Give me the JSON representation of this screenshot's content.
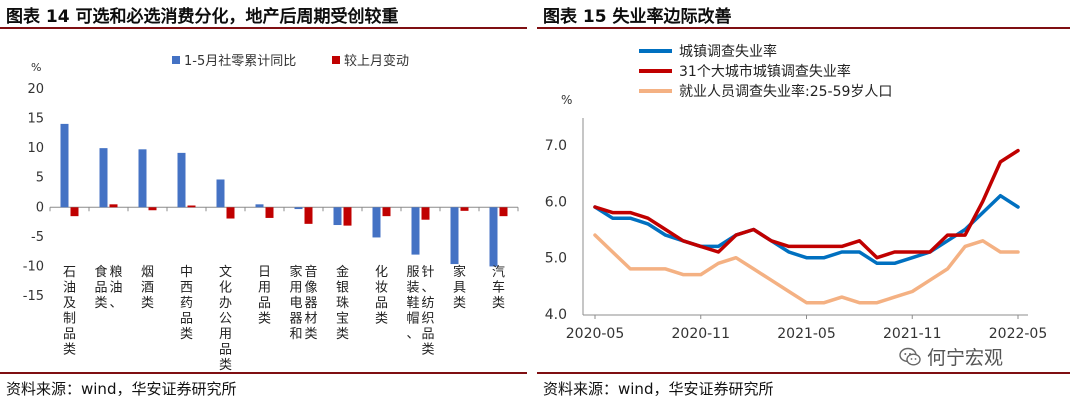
{
  "left": {
    "title": "图表 14 可选和必选消费分化，地产后周期受创较重",
    "source": "资料来源：wind，华安证券研究所"
  },
  "right": {
    "title": "图表 15 失业率边际改善",
    "source": "资料来源：wind，华安证券研究所"
  },
  "watermark": {
    "text": "何宁宏观",
    "icon": "wechat-icon"
  },
  "colors": {
    "blue": "#4472c4",
    "red": "#c00000",
    "line_blue": "#0070c0",
    "line_red": "#c00000",
    "line_orange": "#f4b183",
    "rule": "#7f0f12"
  },
  "chart_data": [
    {
      "type": "bar",
      "title": "图表 14 可选和必选消费分化，地产后周期受创较重",
      "ylabel": "%",
      "ylim": [
        -15,
        20
      ],
      "yticks": [
        -15,
        -10,
        -5,
        0,
        5,
        10,
        15,
        20
      ],
      "categories": [
        "石油及制品类",
        "粮油、食品类",
        "烟酒类",
        "中西药品类",
        "文化办公用品类",
        "日用品类",
        "家用电器和音像器材类",
        "金银珠宝类",
        "化妆品类",
        "服装鞋帽、针、纺织品类",
        "家具类",
        "汽车类"
      ],
      "category_lines": [
        [
          "石油及制品类"
        ],
        [
          "粮油、",
          "食品类"
        ],
        [
          "烟酒类"
        ],
        [
          "中西药品类"
        ],
        [
          "文化办公用品类"
        ],
        [
          "日用品类"
        ],
        [
          "音像器材类",
          "家用电器和"
        ],
        [
          "金银珠宝类"
        ],
        [
          "化妆品类"
        ],
        [
          "针、纺织品类",
          "服装鞋帽、"
        ],
        [
          "家具类"
        ],
        [
          "汽车类"
        ]
      ],
      "series": [
        {
          "name": "1-5月社零累计同比",
          "values": [
            14.1,
            10.0,
            9.8,
            9.2,
            4.7,
            0.5,
            -0.3,
            -3.0,
            -5.1,
            -8.0,
            -9.6,
            -10.0
          ]
        },
        {
          "name": "较上月变动",
          "values": [
            -1.5,
            0.5,
            -0.5,
            0.3,
            -1.9,
            -1.8,
            -2.8,
            -3.1,
            -1.5,
            -2.1,
            -0.6,
            -1.5
          ]
        }
      ],
      "legend": "top"
    },
    {
      "type": "line",
      "title": "图表 15 失业率边际改善",
      "ylabel": "%",
      "ylim": [
        4.0,
        7.0
      ],
      "yticks": [
        "4.0",
        "5.0",
        "6.0",
        "7.0"
      ],
      "xticks": [
        "2020-05",
        "2020-11",
        "2021-05",
        "2021-11",
        "2022-05"
      ],
      "x": [
        "2020-05",
        "2020-06",
        "2020-07",
        "2020-08",
        "2020-09",
        "2020-10",
        "2020-11",
        "2020-12",
        "2021-01",
        "2021-02",
        "2021-03",
        "2021-04",
        "2021-05",
        "2021-06",
        "2021-07",
        "2021-08",
        "2021-09",
        "2021-10",
        "2021-11",
        "2021-12",
        "2022-01",
        "2022-02",
        "2022-03",
        "2022-04",
        "2022-05"
      ],
      "series": [
        {
          "name": "城镇调查失业率",
          "values": [
            5.9,
            5.7,
            5.7,
            5.6,
            5.4,
            5.3,
            5.2,
            5.2,
            5.4,
            5.5,
            5.3,
            5.1,
            5.0,
            5.0,
            5.1,
            5.1,
            4.9,
            4.9,
            5.0,
            5.1,
            5.3,
            5.5,
            5.8,
            6.1,
            5.9
          ]
        },
        {
          "name": "31个大城市城镇调查失业率",
          "values": [
            5.9,
            5.8,
            5.8,
            5.7,
            5.5,
            5.3,
            5.2,
            5.1,
            5.4,
            5.5,
            5.3,
            5.2,
            5.2,
            5.2,
            5.2,
            5.3,
            5.0,
            5.1,
            5.1,
            5.1,
            5.4,
            5.4,
            6.0,
            6.7,
            6.9
          ]
        },
        {
          "name": "就业人员调查失业率:25-59岁人口",
          "values": [
            5.4,
            5.1,
            4.8,
            4.8,
            4.8,
            4.7,
            4.7,
            4.9,
            5.0,
            4.8,
            4.6,
            4.4,
            4.2,
            4.2,
            4.3,
            4.2,
            4.2,
            4.3,
            4.4,
            4.6,
            4.8,
            5.2,
            5.3,
            5.1,
            5.1
          ]
        }
      ],
      "legend": "top-left"
    }
  ]
}
